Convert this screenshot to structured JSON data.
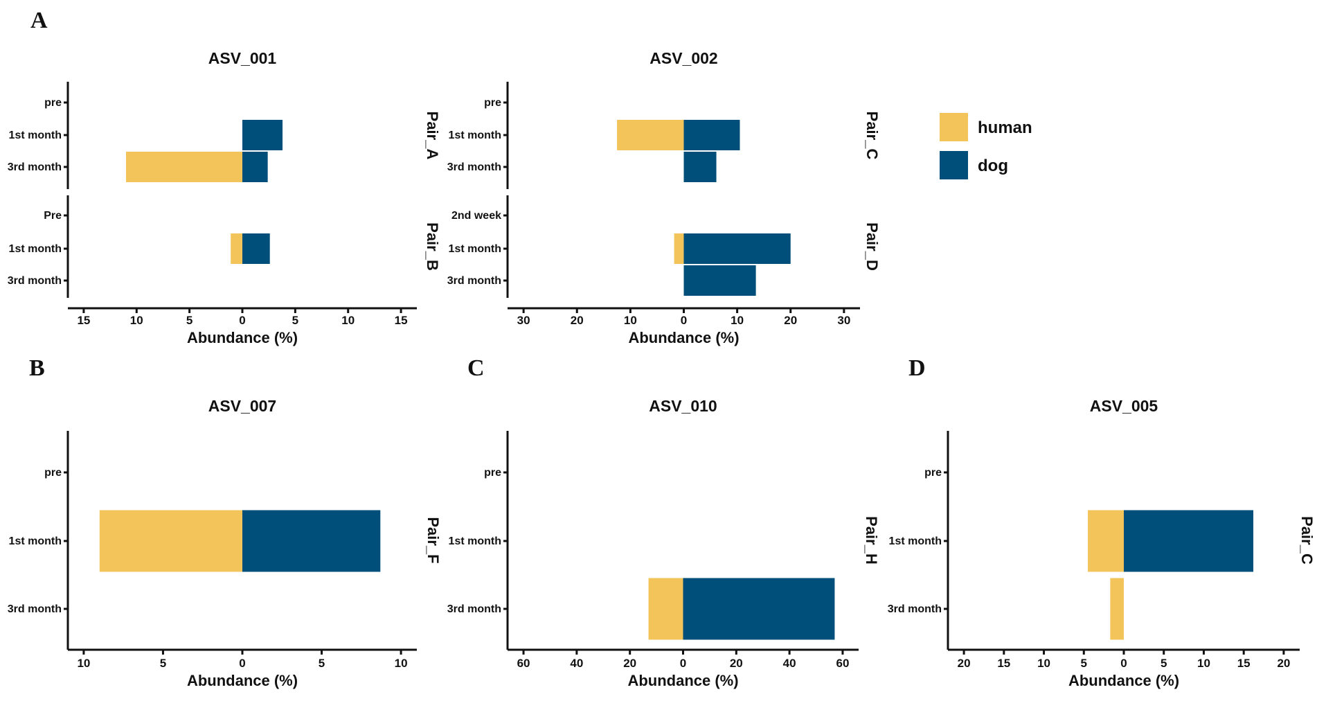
{
  "colors": {
    "human": "#F2C45A",
    "dog": "#004F7A"
  },
  "legend": [
    {
      "key": "human",
      "label": "human"
    },
    {
      "key": "dog",
      "label": "dog"
    }
  ],
  "panel_letters": {
    "A": "A",
    "B": "B",
    "C": "C",
    "D": "D"
  },
  "chart_data": [
    {
      "type": "bar",
      "orientation": "horizontal-diverging",
      "panel": "A",
      "title": "ASV_001",
      "xlabel": "Abundance (%)",
      "xlim": [
        -16.5,
        16.5
      ],
      "xticks": [
        -15,
        -10,
        -5,
        0,
        5,
        10,
        15
      ],
      "xtick_labels": [
        "15",
        "10",
        "5",
        "0",
        "5",
        "10",
        "15"
      ],
      "facets": [
        {
          "label": "Pair_A",
          "categories": [
            "pre",
            "1st month",
            "3rd month"
          ],
          "series": [
            {
              "name": "human",
              "values": [
                0,
                0,
                11
              ]
            },
            {
              "name": "dog",
              "values": [
                0,
                3.8,
                2.4
              ]
            }
          ]
        },
        {
          "label": "Pair_B",
          "categories": [
            "Pre",
            "1st month",
            "3rd month"
          ],
          "series": [
            {
              "name": "human",
              "values": [
                0,
                1.1,
                0
              ]
            },
            {
              "name": "dog",
              "values": [
                0,
                2.6,
                0
              ]
            }
          ]
        }
      ]
    },
    {
      "type": "bar",
      "orientation": "horizontal-diverging",
      "panel": "A",
      "title": "ASV_002",
      "xlabel": "Abundance (%)",
      "xlim": [
        -33,
        33
      ],
      "xticks": [
        -30,
        -20,
        -10,
        0,
        10,
        20,
        30
      ],
      "xtick_labels": [
        "30",
        "20",
        "10",
        "0",
        "10",
        "20",
        "30"
      ],
      "facets": [
        {
          "label": "Pair_C",
          "categories": [
            "pre",
            "1st month",
            "3rd month"
          ],
          "series": [
            {
              "name": "human",
              "values": [
                0,
                12.5,
                0
              ]
            },
            {
              "name": "dog",
              "values": [
                0,
                10.5,
                6.1
              ]
            }
          ]
        },
        {
          "label": "Pair_D",
          "categories": [
            "2nd week",
            "1st month",
            "3rd month"
          ],
          "series": [
            {
              "name": "human",
              "values": [
                0,
                1.8,
                0
              ]
            },
            {
              "name": "dog",
              "values": [
                0,
                20,
                13.5
              ]
            }
          ]
        }
      ]
    },
    {
      "type": "bar",
      "orientation": "horizontal-diverging",
      "panel": "B",
      "title": "ASV_007",
      "xlabel": "Abundance (%)",
      "xlim": [
        -11,
        11
      ],
      "xticks": [
        -10,
        -5,
        0,
        5,
        10
      ],
      "xtick_labels": [
        "10",
        "5",
        "0",
        "5",
        "10"
      ],
      "facets": [
        {
          "label": "Pair_F",
          "categories": [
            "pre",
            "1st month",
            "3rd month"
          ],
          "series": [
            {
              "name": "human",
              "values": [
                0,
                9,
                0
              ]
            },
            {
              "name": "dog",
              "values": [
                0,
                8.7,
                0
              ]
            }
          ]
        }
      ]
    },
    {
      "type": "bar",
      "orientation": "horizontal-diverging",
      "panel": "C",
      "title": "ASV_010",
      "xlabel": "Abundance (%)",
      "xlim": [
        -66,
        66
      ],
      "xticks": [
        -60,
        -40,
        -20,
        0,
        20,
        40,
        60
      ],
      "xtick_labels": [
        "60",
        "40",
        "20",
        "0",
        "20",
        "40",
        "60"
      ],
      "facets": [
        {
          "label": "Pair_H",
          "categories": [
            "pre",
            "1st month",
            "3rd month"
          ],
          "series": [
            {
              "name": "human",
              "values": [
                0,
                0,
                13
              ]
            },
            {
              "name": "dog",
              "values": [
                0,
                0,
                57
              ]
            }
          ]
        }
      ]
    },
    {
      "type": "bar",
      "orientation": "horizontal-diverging",
      "panel": "D",
      "title": "ASV_005",
      "xlabel": "Abundance (%)",
      "xlim": [
        -22,
        22
      ],
      "xticks": [
        -20,
        -15,
        -10,
        -5,
        0,
        5,
        10,
        15,
        20
      ],
      "xtick_labels": [
        "20",
        "15",
        "10",
        "5",
        "0",
        "5",
        "10",
        "15",
        "20"
      ],
      "facets": [
        {
          "label": "Pair_C",
          "categories": [
            "pre",
            "1st month",
            "3rd month"
          ],
          "series": [
            {
              "name": "human",
              "values": [
                0,
                4.5,
                1.7
              ]
            },
            {
              "name": "dog",
              "values": [
                0,
                16.2,
                0
              ]
            }
          ]
        }
      ]
    }
  ]
}
